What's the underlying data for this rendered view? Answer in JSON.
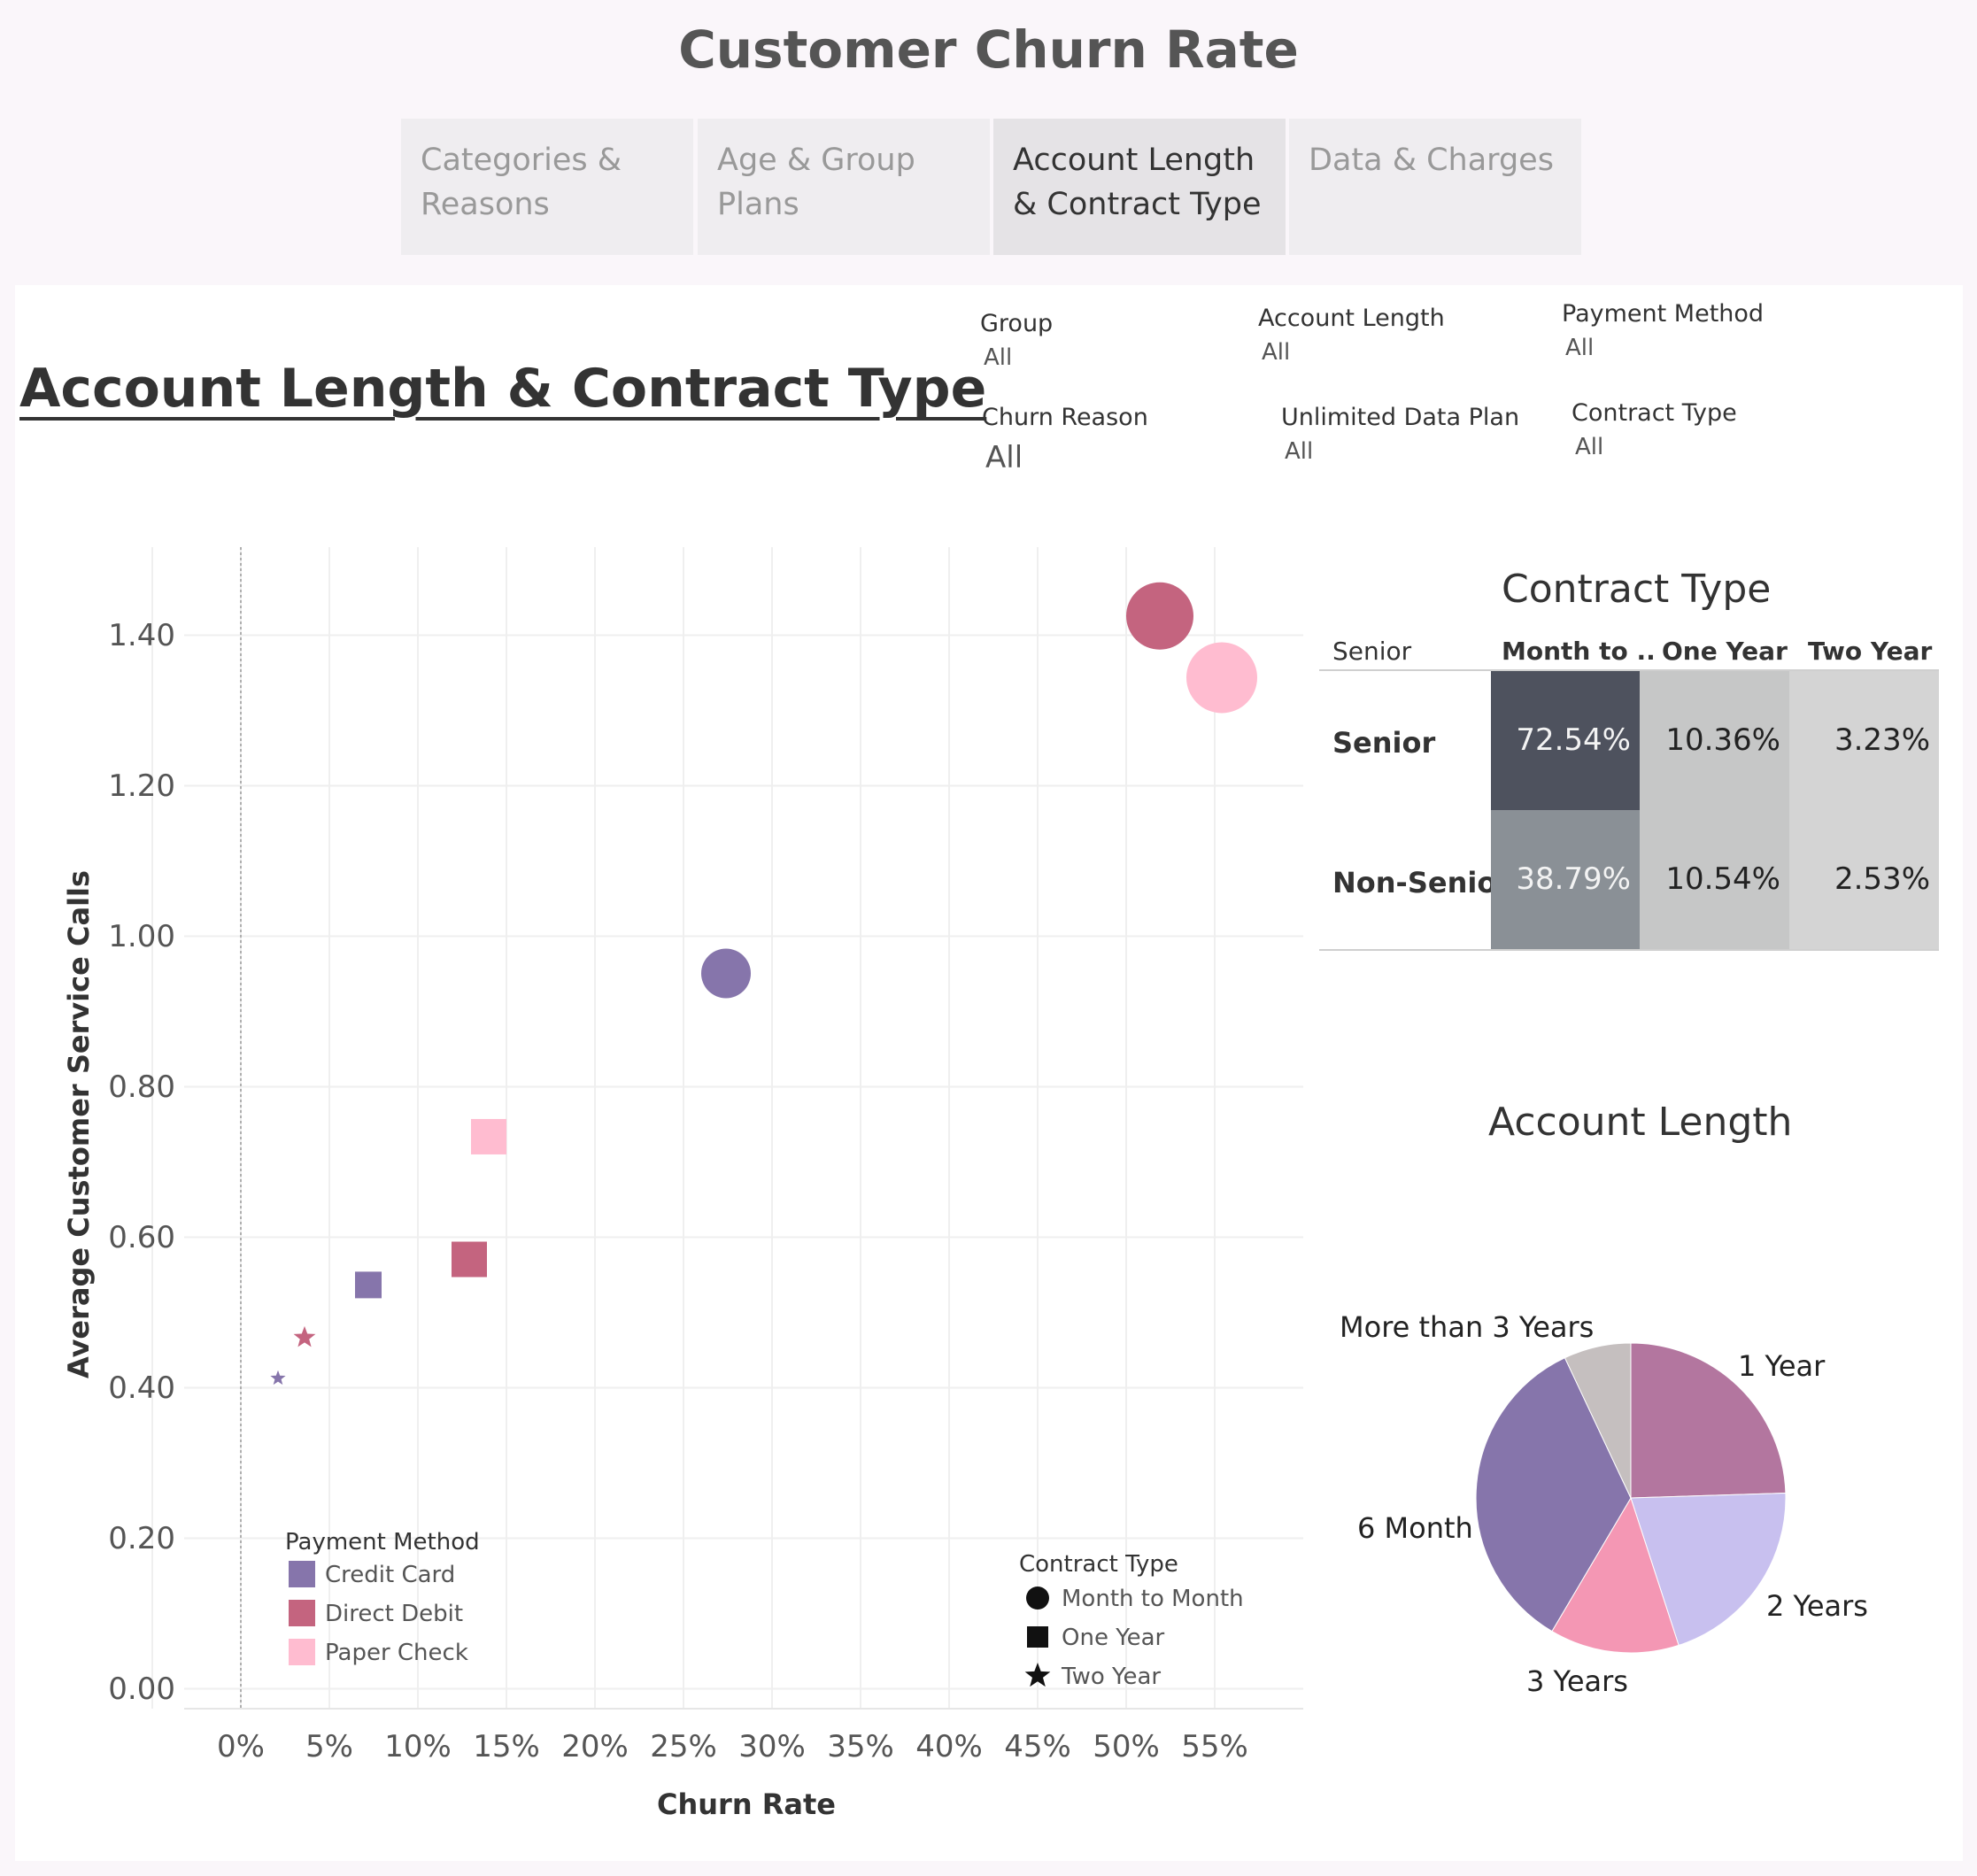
{
  "header": {
    "title": "Customer Churn Rate"
  },
  "tabs": [
    {
      "label": "Categories & Reasons",
      "active": false
    },
    {
      "label": "Age & Group Plans",
      "active": false
    },
    {
      "label": "Account Length & Contract Type",
      "active": true
    },
    {
      "label": "Data & Charges",
      "active": false
    }
  ],
  "section": {
    "title": "Account Length & Contract Type"
  },
  "filters": {
    "group": {
      "label": "Group",
      "value": "All"
    },
    "account_length": {
      "label": "Account Length",
      "value": "All"
    },
    "payment_method": {
      "label": "Payment Method",
      "value": "All"
    },
    "churn_reason": {
      "label": "Churn Reason",
      "value": "All"
    },
    "unlimited_data_plan": {
      "label": "Unlimited Data Plan",
      "value": "All"
    },
    "contract_type": {
      "label": "Contract Type",
      "value": "All"
    }
  },
  "colors": {
    "credit_card": "#8675ab",
    "direct_debit": "#c4647f",
    "paper_check": "#ffbcd0"
  },
  "chart_data": [
    {
      "type": "scatter",
      "xlabel": "Churn Rate",
      "ylabel": "Average Customer Service Calls",
      "x_ticks": [
        "0%",
        "5%",
        "10%",
        "15%",
        "20%",
        "25%",
        "30%",
        "35%",
        "40%",
        "45%",
        "50%",
        "55%"
      ],
      "y_ticks": [
        "0.00",
        "0.20",
        "0.40",
        "0.60",
        "0.80",
        "1.00",
        "1.20",
        "1.40"
      ],
      "xlim": [
        -0.035,
        0.6
      ],
      "ylim": [
        -0.03,
        1.55
      ],
      "grid": true,
      "points": [
        {
          "payment": "Direct Debit",
          "contract": "Month to Month",
          "x": 0.519,
          "y": 1.425,
          "size": 38
        },
        {
          "payment": "Paper Check",
          "contract": "Month to Month",
          "x": 0.554,
          "y": 1.343,
          "size": 40
        },
        {
          "payment": "Credit Card",
          "contract": "Month to Month",
          "x": 0.274,
          "y": 0.95,
          "size": 28
        },
        {
          "payment": "Paper Check",
          "contract": "One Year",
          "x": 0.14,
          "y": 0.733,
          "size": 20
        },
        {
          "payment": "Direct Debit",
          "contract": "One Year",
          "x": 0.129,
          "y": 0.57,
          "size": 20
        },
        {
          "payment": "Credit Card",
          "contract": "One Year",
          "x": 0.072,
          "y": 0.536,
          "size": 15
        },
        {
          "payment": "Direct Debit",
          "contract": "Two Year",
          "x": 0.036,
          "y": 0.466,
          "size": 13
        },
        {
          "payment": "Credit Card",
          "contract": "Two Year",
          "x": 0.021,
          "y": 0.412,
          "size": 9
        }
      ],
      "legend_payment": {
        "title": "Payment Method",
        "items": [
          {
            "label": "Credit Card",
            "color": "#8675ab"
          },
          {
            "label": "Direct Debit",
            "color": "#c4647f"
          },
          {
            "label": "Paper Check",
            "color": "#ffbcd0"
          }
        ]
      },
      "legend_contract": {
        "title": "Contract Type",
        "items": [
          {
            "label": "Month to Month",
            "shape": "circle"
          },
          {
            "label": "One Year",
            "shape": "square"
          },
          {
            "label": "Two Year",
            "shape": "star"
          }
        ]
      }
    },
    {
      "type": "heatmap",
      "title": "Contract Type",
      "row_header": "Senior",
      "columns": [
        "Month to ..",
        "One Year",
        "Two Year"
      ],
      "rows": [
        {
          "label": "Senior",
          "values": [
            "72.54%",
            "10.36%",
            "3.23%"
          ]
        },
        {
          "label": "Non-Senior",
          "values": [
            "38.79%",
            "10.54%",
            "2.53%"
          ]
        }
      ],
      "cell_colors": [
        [
          "#4e525e",
          "#c6c7c7",
          "#d4d4d4"
        ],
        [
          "#8a9096",
          "#c6c7c7",
          "#d4d4d4"
        ]
      ]
    },
    {
      "type": "pie",
      "title": "Account Length",
      "slices": [
        {
          "label": "1 Year",
          "value": 24.5,
          "color": "#b3769f"
        },
        {
          "label": "2 Years",
          "value": 20.5,
          "color": "#c8c0ef"
        },
        {
          "label": "3 Years",
          "value": 13.5,
          "color": "#f497b4"
        },
        {
          "label": "6 Month",
          "value": 34.5,
          "color": "#8675ab"
        },
        {
          "label": "More than 3 Years",
          "value": 7.0,
          "color": "#c5bfbf"
        }
      ]
    }
  ]
}
